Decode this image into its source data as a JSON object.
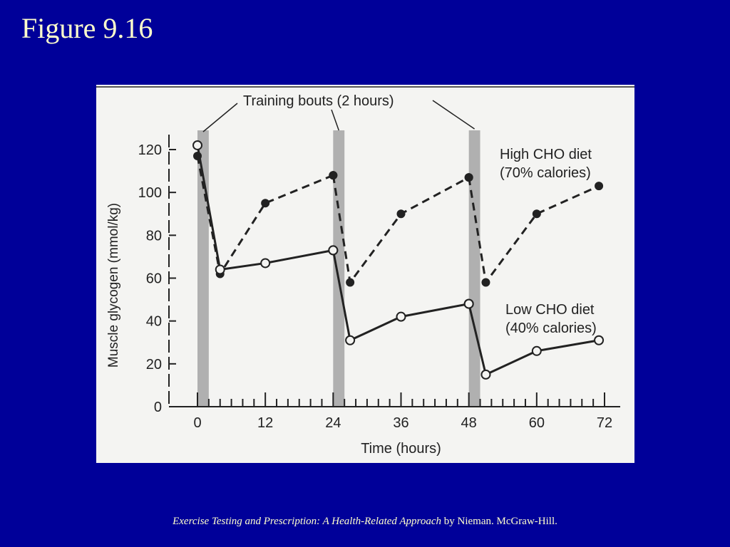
{
  "slide": {
    "title": "Figure 9.16",
    "caption_book": "Exercise Testing and Prescription:  A Health-Related Approach",
    "caption_rest": " by Nieman.  McGraw-Hill."
  },
  "colors": {
    "background": "#000099",
    "title_text": "#ffffcc",
    "panel": "#f4f4f2",
    "ink": "#222222",
    "bout_band": "#9a9a9a"
  },
  "chart_data": {
    "type": "line",
    "title": "",
    "xlabel": "Time (hours)",
    "ylabel": "Muscle glycogen (mmol/kg)",
    "xlim": [
      0,
      72
    ],
    "ylim": [
      0,
      120
    ],
    "x_ticks": [
      0,
      12,
      24,
      36,
      48,
      60,
      72
    ],
    "y_ticks": [
      0,
      20,
      40,
      60,
      80,
      100,
      120
    ],
    "annotation": "Training bouts (2 hours)",
    "training_bouts": [
      [
        0,
        2
      ],
      [
        24,
        26
      ],
      [
        48,
        50
      ]
    ],
    "grid": false,
    "series": [
      {
        "name": "High CHO diet",
        "label_lines": [
          "High CHO diet",
          "(70% calories)"
        ],
        "style": "dashed",
        "marker": "filled-circle",
        "segments": [
          {
            "x": [
              0,
              4,
              12,
              24
            ],
            "y": [
              117,
              62,
              95,
              108
            ]
          },
          {
            "x": [
              24,
              27,
              36,
              48
            ],
            "y": [
              108,
              58,
              90,
              107
            ]
          },
          {
            "x": [
              48,
              51,
              60,
              71
            ],
            "y": [
              107,
              58,
              90,
              103
            ]
          }
        ]
      },
      {
        "name": "Low CHO diet",
        "label_lines": [
          "Low CHO diet",
          "(40% calories)"
        ],
        "style": "solid",
        "marker": "open-circle",
        "segments": [
          {
            "x": [
              0,
              4,
              12,
              24
            ],
            "y": [
              122,
              64,
              67,
              73
            ]
          },
          {
            "x": [
              24,
              27,
              36,
              48
            ],
            "y": [
              73,
              31,
              42,
              48
            ]
          },
          {
            "x": [
              48,
              51,
              60,
              71
            ],
            "y": [
              48,
              15,
              26,
              31
            ]
          }
        ]
      }
    ]
  }
}
